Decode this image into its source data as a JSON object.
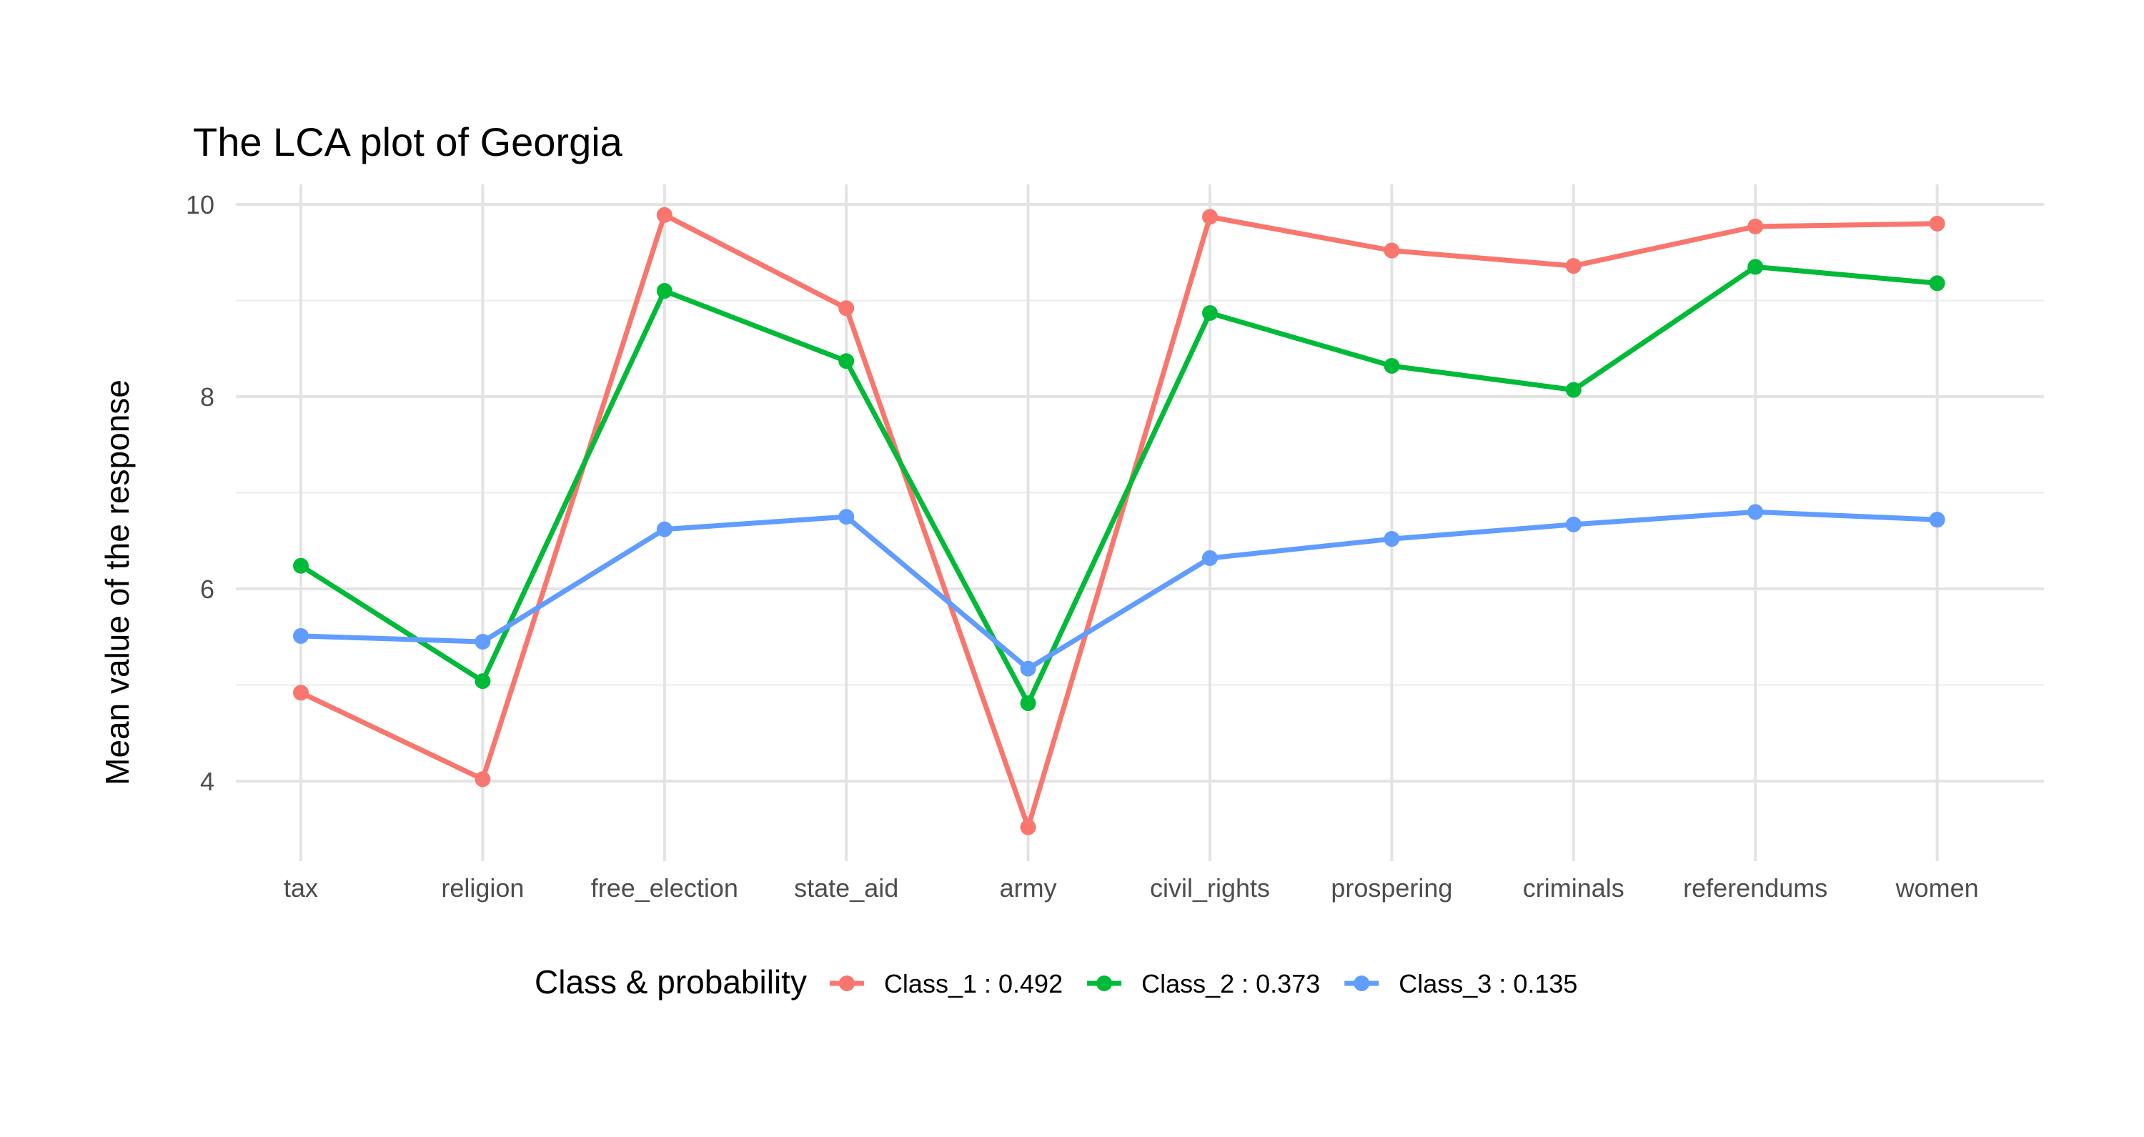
{
  "chart_data": {
    "type": "line",
    "title": "The LCA plot of Georgia",
    "xlabel": "",
    "ylabel": "Mean value of the response",
    "categories": [
      "tax",
      "religion",
      "free_election",
      "state_aid",
      "army",
      "civil_rights",
      "prospering",
      "criminals",
      "referendums",
      "women"
    ],
    "ylim": [
      3.15,
      10.2
    ],
    "yticks": [
      4,
      6,
      8,
      10
    ],
    "ytick_labels": [
      "4",
      "6",
      "8",
      "10"
    ],
    "grid": true,
    "legend": {
      "title": "Class & probability",
      "position": "bottom"
    },
    "series": [
      {
        "name": "Class_1 : 0.492",
        "color": "#F8766D",
        "values": [
          4.92,
          4.02,
          9.89,
          8.92,
          3.52,
          9.87,
          9.52,
          9.36,
          9.77,
          9.8
        ]
      },
      {
        "name": "Class_2 : 0.373",
        "color": "#00BA38",
        "values": [
          6.24,
          5.04,
          9.1,
          8.37,
          4.81,
          8.87,
          8.32,
          8.07,
          9.35,
          9.18
        ]
      },
      {
        "name": "Class_3 : 0.135",
        "color": "#619CFF",
        "values": [
          5.51,
          5.45,
          6.62,
          6.75,
          5.17,
          6.32,
          6.52,
          6.67,
          6.8,
          6.72
        ]
      }
    ]
  }
}
